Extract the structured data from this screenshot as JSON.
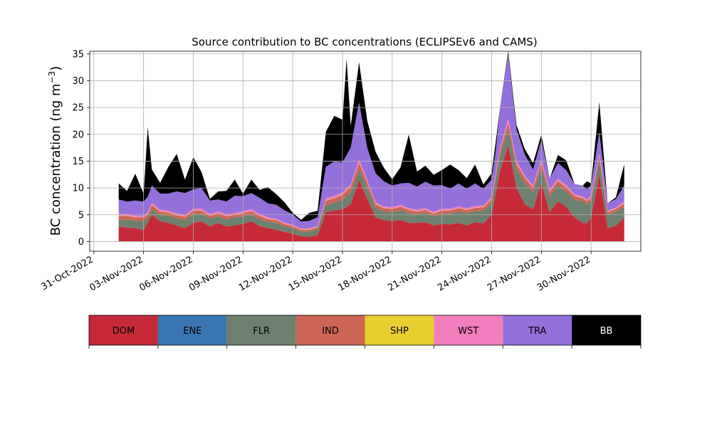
{
  "chart_data": {
    "type": "area",
    "title": "Source contribution to BC concentrations (ECLIPSEv6 and CAMS)",
    "ylabel": "BC concentration (ng m⁻³)",
    "xlabel": "",
    "xlim": [
      "2022-10-30T18:00",
      "2022-12-03T00:00"
    ],
    "ylim": [
      -1.8,
      35.5
    ],
    "grid": true,
    "x_ticks": [
      "31-Oct-2022",
      "03-Nov-2022",
      "06-Nov-2022",
      "09-Nov-2022",
      "12-Nov-2022",
      "15-Nov-2022",
      "18-Nov-2022",
      "21-Nov-2022",
      "24-Nov-2022",
      "27-Nov-2022",
      "30-Nov-2022"
    ],
    "y_ticks": [
      0,
      5,
      10,
      15,
      20,
      25,
      30,
      35
    ],
    "stack_order": [
      "DOM",
      "FLR",
      "IND",
      "SHP",
      "WST",
      "TRA",
      "BB"
    ],
    "x": [
      "2022-11-01T12:00",
      "2022-11-02T00:00",
      "2022-11-02T12:00",
      "2022-11-03T00:00",
      "2022-11-03T06:00",
      "2022-11-03T12:00",
      "2022-11-04T00:00",
      "2022-11-04T12:00",
      "2022-11-05T00:00",
      "2022-11-05T12:00",
      "2022-11-06T00:00",
      "2022-11-06T12:00",
      "2022-11-07T00:00",
      "2022-11-07T12:00",
      "2022-11-08T00:00",
      "2022-11-08T12:00",
      "2022-11-09T00:00",
      "2022-11-09T12:00",
      "2022-11-10T00:00",
      "2022-11-10T12:00",
      "2022-11-11T00:00",
      "2022-11-11T12:00",
      "2022-11-12T00:00",
      "2022-11-12T12:00",
      "2022-11-13T00:00",
      "2022-11-13T12:00",
      "2022-11-14T00:00",
      "2022-11-14T12:00",
      "2022-11-15T00:00",
      "2022-11-15T06:00",
      "2022-11-15T12:00",
      "2022-11-16T00:00",
      "2022-11-16T12:00",
      "2022-11-17T00:00",
      "2022-11-17T12:00",
      "2022-11-18T00:00",
      "2022-11-18T12:00",
      "2022-11-19T00:00",
      "2022-11-19T12:00",
      "2022-11-20T00:00",
      "2022-11-20T12:00",
      "2022-11-21T00:00",
      "2022-11-21T12:00",
      "2022-11-22T00:00",
      "2022-11-22T12:00",
      "2022-11-23T00:00",
      "2022-11-23T12:00",
      "2022-11-24T00:00",
      "2022-11-24T06:00",
      "2022-11-24T12:00",
      "2022-11-25T00:00",
      "2022-11-25T12:00",
      "2022-11-26T00:00",
      "2022-11-26T12:00",
      "2022-11-27T00:00",
      "2022-11-27T12:00",
      "2022-11-28T00:00",
      "2022-11-28T12:00",
      "2022-11-29T00:00",
      "2022-11-29T12:00",
      "2022-11-29T18:00",
      "2022-11-30T00:00",
      "2022-11-30T12:00",
      "2022-12-01T00:00",
      "2022-12-01T12:00",
      "2022-12-02T00:00"
    ],
    "series": [
      {
        "name": "DOM",
        "color": "#c62a38",
        "values": [
          2.8,
          2.6,
          2.5,
          2.2,
          3.5,
          5.0,
          3.8,
          3.5,
          3.0,
          2.5,
          3.5,
          3.8,
          2.8,
          3.5,
          2.8,
          3.0,
          3.3,
          3.8,
          2.9,
          2.5,
          2.2,
          1.8,
          1.5,
          1.0,
          0.9,
          1.2,
          5.5,
          5.8,
          6.0,
          6.5,
          7.0,
          11.5,
          8.0,
          4.5,
          4.0,
          3.8,
          4.0,
          3.5,
          3.5,
          3.6,
          3.0,
          3.3,
          3.2,
          3.5,
          3.0,
          3.6,
          3.4,
          5.0,
          9.0,
          13.0,
          18.0,
          10.0,
          7.0,
          6.0,
          11.0,
          5.5,
          7.5,
          6.5,
          4.5,
          3.5,
          3.4,
          4.5,
          12.5,
          2.5,
          3.0,
          4.5
        ]
      },
      {
        "name": "ENE",
        "color": "#3976af",
        "values": [
          0.1,
          0.1,
          0.1,
          0.1,
          0.1,
          0.1,
          0.1,
          0.1,
          0.1,
          0.1,
          0.1,
          0.1,
          0.1,
          0.1,
          0.1,
          0.1,
          0.1,
          0.1,
          0.1,
          0.1,
          0.1,
          0.1,
          0.1,
          0.1,
          0.1,
          0.1,
          0.1,
          0.1,
          0.1,
          0.1,
          0.1,
          0.1,
          0.1,
          0.1,
          0.1,
          0.1,
          0.1,
          0.1,
          0.1,
          0.1,
          0.1,
          0.1,
          0.1,
          0.1,
          0.1,
          0.1,
          0.1,
          0.1,
          0.1,
          0.1,
          0.1,
          0.1,
          0.1,
          0.1,
          0.1,
          0.1,
          0.1,
          0.1,
          0.1,
          0.1,
          0.1,
          0.1,
          0.1,
          0.1,
          0.1,
          0.1
        ]
      },
      {
        "name": "FLR",
        "color": "#6e806e",
        "values": [
          1.3,
          1.5,
          1.4,
          1.6,
          1.0,
          1.1,
          1.2,
          1.3,
          1.4,
          1.5,
          1.6,
          1.4,
          1.5,
          1.2,
          1.3,
          1.5,
          1.4,
          1.2,
          1.3,
          1.2,
          1.3,
          1.1,
          1.0,
          0.9,
          1.0,
          1.1,
          1.3,
          1.5,
          1.8,
          2.0,
          2.2,
          2.0,
          2.1,
          1.8,
          1.6,
          1.7,
          1.9,
          1.8,
          1.6,
          1.8,
          1.7,
          1.9,
          2.0,
          2.1,
          2.3,
          2.1,
          2.4,
          2.2,
          2.6,
          2.8,
          3.0,
          3.5,
          4.0,
          3.2,
          2.8,
          3.0,
          3.0,
          2.8,
          3.3,
          4.0,
          3.5,
          3.0,
          2.5,
          2.5,
          2.6,
          2.0
        ]
      },
      {
        "name": "IND",
        "color": "#cd6556",
        "values": [
          0.7,
          0.7,
          0.6,
          0.7,
          0.6,
          0.7,
          0.6,
          0.6,
          0.5,
          0.6,
          0.7,
          0.6,
          0.5,
          0.6,
          0.6,
          0.5,
          0.6,
          0.7,
          0.6,
          0.5,
          0.5,
          0.4,
          0.4,
          0.3,
          0.3,
          0.4,
          0.8,
          0.8,
          0.9,
          1.0,
          1.0,
          1.2,
          0.9,
          0.7,
          0.6,
          0.6,
          0.6,
          0.6,
          0.5,
          0.5,
          0.5,
          0.6,
          0.6,
          0.6,
          0.6,
          0.6,
          0.6,
          0.7,
          0.8,
          1.0,
          1.2,
          1.0,
          0.9,
          0.8,
          1.0,
          0.8,
          0.8,
          0.8,
          0.7,
          0.6,
          0.6,
          0.7,
          0.9,
          0.5,
          0.5,
          0.6
        ]
      },
      {
        "name": "SHP",
        "color": "#e7cf2f",
        "values": [
          0.05,
          0.05,
          0.05,
          0.05,
          0.05,
          0.05,
          0.05,
          0.05,
          0.05,
          0.05,
          0.05,
          0.05,
          0.05,
          0.05,
          0.05,
          0.05,
          0.05,
          0.05,
          0.05,
          0.05,
          0.05,
          0.05,
          0.05,
          0.05,
          0.05,
          0.05,
          0.05,
          0.05,
          0.05,
          0.05,
          0.05,
          0.05,
          0.05,
          0.05,
          0.05,
          0.05,
          0.05,
          0.05,
          0.05,
          0.05,
          0.05,
          0.05,
          0.05,
          0.05,
          0.05,
          0.05,
          0.05,
          0.05,
          0.05,
          0.05,
          0.05,
          0.05,
          0.05,
          0.05,
          0.05,
          0.05,
          0.05,
          0.05,
          0.05,
          0.05,
          0.05,
          0.05,
          0.05,
          0.05,
          0.05,
          0.05
        ]
      },
      {
        "name": "WST",
        "color": "#f27ebe",
        "values": [
          0.3,
          0.3,
          0.3,
          0.3,
          0.3,
          0.4,
          0.3,
          0.3,
          0.3,
          0.3,
          0.3,
          0.3,
          0.3,
          0.3,
          0.3,
          0.3,
          0.3,
          0.3,
          0.3,
          0.3,
          0.2,
          0.2,
          0.2,
          0.2,
          0.2,
          0.2,
          0.4,
          0.4,
          0.4,
          0.4,
          0.4,
          0.6,
          0.4,
          0.3,
          0.3,
          0.3,
          0.3,
          0.3,
          0.3,
          0.3,
          0.3,
          0.3,
          0.3,
          0.3,
          0.3,
          0.3,
          0.3,
          0.3,
          0.4,
          0.5,
          0.7,
          0.5,
          0.4,
          0.4,
          0.5,
          0.3,
          0.4,
          0.4,
          0.3,
          0.3,
          0.3,
          0.3,
          0.5,
          0.2,
          0.2,
          0.3
        ]
      },
      {
        "name": "TRA",
        "color": "#9470db",
        "values": [
          2.7,
          2.3,
          2.8,
          2.6,
          2.9,
          3.2,
          3.0,
          3.2,
          4.1,
          4.1,
          3.6,
          3.8,
          2.5,
          2.2,
          2.4,
          3.2,
          2.8,
          3.0,
          3.0,
          2.6,
          2.6,
          2.3,
          1.9,
          1.3,
          1.4,
          1.6,
          5.9,
          6.4,
          5.6,
          6.2,
          6.9,
          10.6,
          6.0,
          5.4,
          4.7,
          4.0,
          4.0,
          4.7,
          4.3,
          4.9,
          4.9,
          4.4,
          3.7,
          4.3,
          3.6,
          4.2,
          3.1,
          3.3,
          4.1,
          7.5,
          12.0,
          5.9,
          3.9,
          3.0,
          3.6,
          2.1,
          2.9,
          2.8,
          1.9,
          2.0,
          1.9,
          2.0,
          4.0,
          1.4,
          1.6,
          3.0
        ]
      },
      {
        "name": "BB",
        "color": "#000000",
        "values": [
          3.0,
          2.0,
          5.0,
          1.5,
          13.0,
          3.0,
          2.0,
          5.0,
          7.0,
          2.5,
          6.0,
          3.0,
          0.3,
          1.5,
          2.0,
          3.0,
          0.5,
          2.5,
          1.5,
          3.0,
          2.0,
          1.5,
          0.3,
          0.3,
          1.5,
          1.2,
          6.5,
          8.5,
          8.0,
          18.0,
          4.0,
          7.5,
          5.0,
          4.0,
          2.5,
          1.2,
          3.0,
          9.0,
          2.8,
          3.0,
          2.0,
          2.8,
          4.5,
          2.5,
          2.0,
          3.5,
          0.8,
          1.2,
          1.7,
          0.0,
          0.6,
          0.8,
          1.0,
          1.2,
          1.0,
          0.0,
          1.5,
          1.8,
          0.0,
          0.0,
          1.5,
          0.3,
          5.6,
          0.0,
          0.3,
          4.0
        ]
      }
    ],
    "colorbar_legend": [
      {
        "label": "DOM",
        "color": "#c62a38"
      },
      {
        "label": "ENE",
        "color": "#3976af"
      },
      {
        "label": "FLR",
        "color": "#6e806e"
      },
      {
        "label": "IND",
        "color": "#cd6556"
      },
      {
        "label": "SHP",
        "color": "#e7cf2f"
      },
      {
        "label": "WST",
        "color": "#f27ebe"
      },
      {
        "label": "TRA",
        "color": "#9470db"
      },
      {
        "label": "BB",
        "color": "#000000"
      }
    ]
  }
}
